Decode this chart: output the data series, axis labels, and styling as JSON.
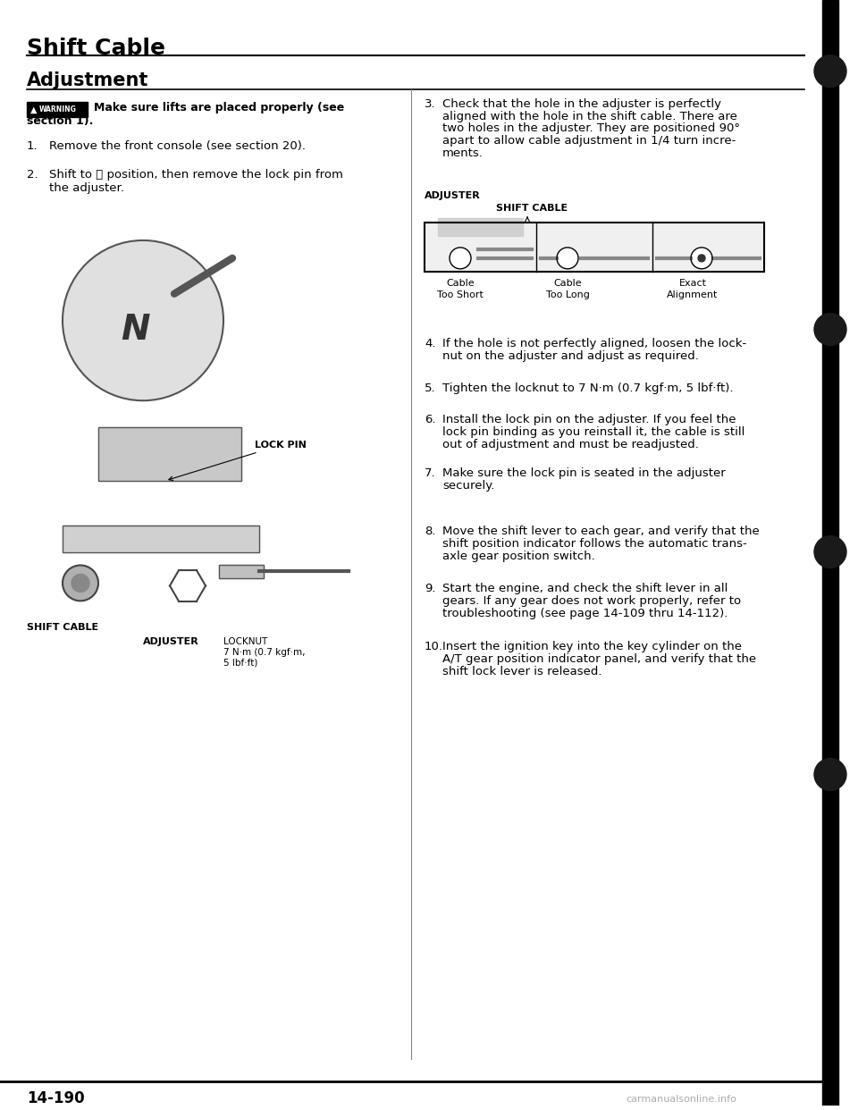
{
  "page_title": "Shift Cable",
  "section_title": "Adjustment",
  "warning_text": "Make sure lifts are placed properly (see\nsection 1).",
  "steps_left": [
    "Remove the front console (see section 20).",
    "Shift to Ⓝ position, then remove the lock pin from\nthe adjuster."
  ],
  "steps_right": [
    "Check that the hole in the adjuster is perfectly\naligned with the hole in the shift cable. There are\ntwo holes in the adjuster. They are positioned 90°\napart to allow cable adjustment in 1/4 turn incre-\nments.",
    "If the hole is not perfectly aligned, loosen the lock-\nnut on the adjuster and adjust as required.",
    "Tighten the locknut to 7 N·m (0.7 kgf·m, 5 lbf·ft).",
    "Install the lock pin on the adjuster. If you feel the\nlock pin binding as you reinstall it, the cable is still\nout of adjustment and must be readjusted.",
    "Make sure the lock pin is seated in the adjuster\nsecurely.",
    "Move the shift lever to each gear, and verify that the\nshift position indicator follows the automatic trans-\naxle gear position switch.",
    "Start the engine, and check the shift lever in all\ngears. If any gear does not work properly, refer to\ntroubleshooting (see page 14-109 thru 14-112).",
    "Insert the ignition key into the key cylinder on the\nA/T gear position indicator panel, and verify that the\nshift lock lever is released."
  ],
  "diagram_labels": [
    "ADJUSTER",
    "SHIFT CABLE"
  ],
  "cable_labels": [
    "Cable\nToo Short",
    "Cable\nToo Long",
    "Exact\nAlignment"
  ],
  "left_image_labels": [
    "LOCK PIN",
    "SHIFT CABLE",
    "ADJUSTER",
    "LOCKNUT\n7 N·m (0.7 kgf·m,\n5 lbf·ft)"
  ],
  "page_number": "14-190",
  "watermark": "carmanualsonline.info",
  "bg_color": "#ffffff",
  "text_color": "#000000",
  "warning_bg": "#000000",
  "warning_text_color": "#ffffff",
  "divider_color": "#000000",
  "right_border_color": "#000000"
}
